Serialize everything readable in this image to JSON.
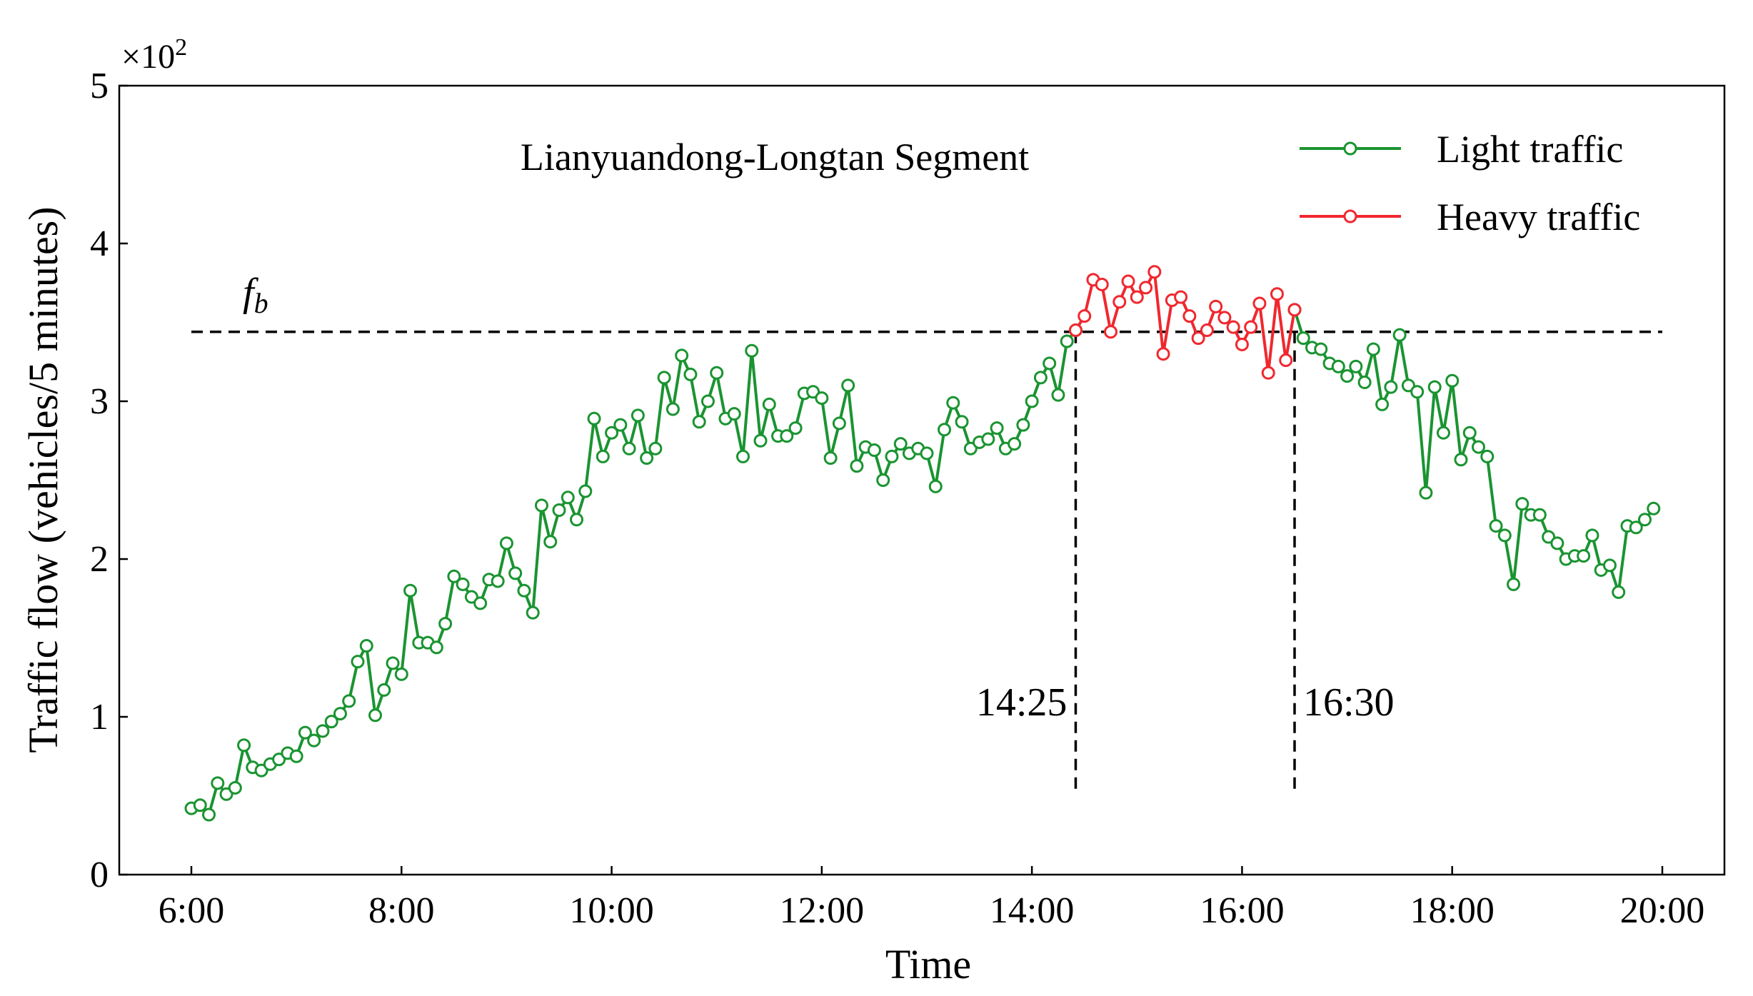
{
  "chart_data": {
    "type": "line",
    "title": "Lianyuandong-Longtan Segment",
    "xlabel": "Time",
    "ylabel": "Traffic flow (vehicles/5 minutes)",
    "y_multiplier": "×10",
    "y_multiplier_exp": "2",
    "xlim": [
      "6:00",
      "20:00"
    ],
    "ylim": [
      0,
      5
    ],
    "x_ticks": [
      "6:00",
      "8:00",
      "10:00",
      "12:00",
      "14:00",
      "16:00",
      "20:00"
    ],
    "x_ticks_all": [
      "6:00",
      "8:00",
      "10:00",
      "12:00",
      "14:00",
      "16:00",
      "18:00",
      "20:00"
    ],
    "y_ticks": [
      "0",
      "1",
      "2",
      "3",
      "4",
      "5"
    ],
    "grid": false,
    "legend_position": "top-right",
    "threshold": {
      "label": "f",
      "sub": "b",
      "value": 3.44
    },
    "markers": [
      {
        "time": "14:25",
        "label": "14:25"
      },
      {
        "time": "16:30",
        "label": "16:30"
      }
    ],
    "colors": {
      "light": "#1a9431",
      "heavy": "#f0282e",
      "axis": "#000000"
    },
    "series": [
      {
        "name": "Light traffic",
        "color": "#1a9431",
        "segments": [
          {
            "x": [
              "6:00",
              "6:05",
              "6:10",
              "6:15",
              "6:20",
              "6:25",
              "6:30",
              "6:35",
              "6:40",
              "6:45",
              "6:50",
              "6:55",
              "7:00",
              "7:05",
              "7:10",
              "7:15",
              "7:20",
              "7:25",
              "7:30",
              "7:35",
              "7:40",
              "7:45",
              "7:50",
              "7:55",
              "8:00",
              "8:05",
              "8:10",
              "8:15",
              "8:20",
              "8:25",
              "8:30",
              "8:35",
              "8:40",
              "8:45",
              "8:50",
              "8:55",
              "9:00",
              "9:05",
              "9:10",
              "9:15",
              "9:20",
              "9:25",
              "9:30",
              "9:35",
              "9:40",
              "9:45",
              "9:50",
              "9:55",
              "10:00",
              "10:05",
              "10:10",
              "10:15",
              "10:20",
              "10:25",
              "10:30",
              "10:35",
              "10:40",
              "10:45",
              "10:50",
              "10:55",
              "11:00",
              "11:05",
              "11:10",
              "11:15",
              "11:20",
              "11:25",
              "11:30",
              "11:35",
              "11:40",
              "11:45",
              "11:50",
              "11:55",
              "12:00",
              "12:05",
              "12:10",
              "12:15",
              "12:20",
              "12:25",
              "12:30",
              "12:35",
              "12:40",
              "12:45",
              "12:50",
              "12:55",
              "13:00",
              "13:05",
              "13:10",
              "13:15",
              "13:20",
              "13:25",
              "13:30",
              "13:35",
              "13:40",
              "13:45",
              "13:50",
              "13:55",
              "14:00",
              "14:05",
              "14:10",
              "14:15",
              "14:20",
              "14:25"
            ],
            "y": [
              0.42,
              0.44,
              0.38,
              0.58,
              0.51,
              0.55,
              0.82,
              0.68,
              0.66,
              0.7,
              0.73,
              0.77,
              0.75,
              0.9,
              0.85,
              0.91,
              0.97,
              1.02,
              1.1,
              1.35,
              1.45,
              1.01,
              1.17,
              1.34,
              1.27,
              1.8,
              1.47,
              1.47,
              1.44,
              1.59,
              1.89,
              1.84,
              1.76,
              1.72,
              1.87,
              1.86,
              2.1,
              1.91,
              1.8,
              1.66,
              2.34,
              2.11,
              2.31,
              2.39,
              2.25,
              2.43,
              2.89,
              2.65,
              2.8,
              2.85,
              2.7,
              2.91,
              2.64,
              2.7,
              3.15,
              2.95,
              3.29,
              3.17,
              2.87,
              3.0,
              3.18,
              2.89,
              2.92,
              2.65,
              3.32,
              2.75,
              2.98,
              2.78,
              2.78,
              2.83,
              3.05,
              3.06,
              3.02,
              2.64,
              2.86,
              3.1,
              2.59,
              2.71,
              2.69,
              2.5,
              2.65,
              2.73,
              2.67,
              2.7,
              2.67,
              2.46,
              2.82,
              2.99,
              2.87,
              2.7,
              2.74,
              2.76,
              2.83,
              2.7,
              2.73,
              2.85,
              3.0,
              3.15,
              3.24,
              3.04,
              3.38,
              3.45
            ]
          },
          {
            "x": [
              "16:30",
              "16:35",
              "16:40",
              "16:45",
              "16:50",
              "16:55",
              "17:00",
              "17:05",
              "17:10",
              "17:15",
              "17:20",
              "17:25",
              "17:30",
              "17:35",
              "17:40",
              "17:45",
              "17:50",
              "17:55",
              "18:00",
              "18:05",
              "18:10",
              "18:15",
              "18:20",
              "18:25",
              "18:30",
              "18:35",
              "18:40",
              "18:45",
              "18:50",
              "18:55",
              "19:00",
              "19:05",
              "19:10",
              "19:15",
              "19:20",
              "19:25",
              "19:30",
              "19:35",
              "19:40",
              "19:45",
              "19:50",
              "19:55"
            ],
            "y": [
              3.58,
              3.4,
              3.34,
              3.33,
              3.24,
              3.22,
              3.16,
              3.22,
              3.12,
              3.33,
              2.98,
              3.09,
              3.42,
              3.1,
              3.06,
              2.42,
              3.09,
              2.8,
              3.13,
              2.63,
              2.8,
              2.71,
              2.65,
              2.21,
              2.15,
              1.84,
              2.35,
              2.28,
              2.28,
              2.14,
              2.1,
              2.0,
              2.02,
              2.02,
              2.15,
              1.93,
              1.96,
              1.79,
              2.21,
              2.2,
              2.25,
              2.32
            ]
          }
        ]
      },
      {
        "name": "Heavy traffic",
        "color": "#f0282e",
        "segments": [
          {
            "x": [
              "14:25",
              "14:30",
              "14:35",
              "14:40",
              "14:45",
              "14:50",
              "14:55",
              "15:00",
              "15:05",
              "15:10",
              "15:15",
              "15:20",
              "15:25",
              "15:30",
              "15:35",
              "15:40",
              "15:45",
              "15:50",
              "15:55",
              "16:00",
              "16:05",
              "16:10",
              "16:15",
              "16:20",
              "16:25",
              "16:30"
            ],
            "y": [
              3.45,
              3.54,
              3.77,
              3.74,
              3.44,
              3.63,
              3.76,
              3.66,
              3.72,
              3.82,
              3.3,
              3.64,
              3.66,
              3.54,
              3.4,
              3.45,
              3.6,
              3.53,
              3.47,
              3.36,
              3.47,
              3.62,
              3.18,
              3.68,
              3.26,
              3.58
            ]
          }
        ]
      }
    ]
  }
}
